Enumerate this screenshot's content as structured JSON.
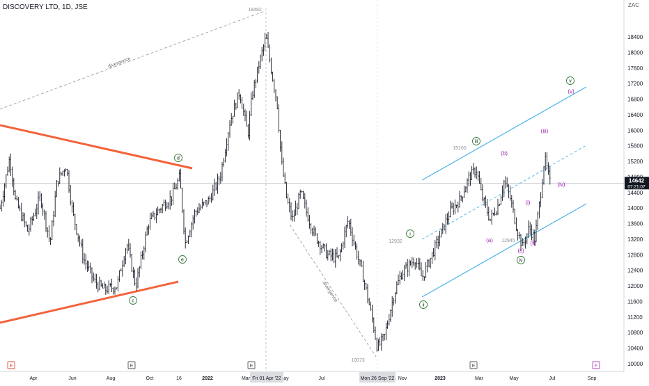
{
  "header": {
    "symbol": "DISCOVERY LTD, 1D, JSE",
    "currency": "ZAC"
  },
  "chart_data": {
    "type": "candlestick",
    "price_ticks": [
      10000,
      10400,
      10800,
      11200,
      11600,
      12000,
      12400,
      12800,
      13200,
      13600,
      14000,
      14400,
      14800,
      15200,
      15600,
      16000,
      16400,
      16800,
      17200,
      17600,
      18000,
      18400
    ],
    "time_ticks": [
      "Apr",
      "Jun",
      "Aug",
      "Oct",
      "16",
      "2022",
      "Mar",
      "May",
      "Jul",
      "S",
      "Nov",
      "2023",
      "Mar",
      "May",
      "Jul",
      "Sep"
    ],
    "last_price": "14642",
    "countdown": "07:21:07",
    "price_labels": [
      {
        "text": "18482",
        "price": 18482
      },
      {
        "text": "10073",
        "price": 10073
      },
      {
        "text": "15160",
        "price": 15160
      },
      {
        "text": "12932",
        "price": 12932
      },
      {
        "text": "12945",
        "price": 12945
      }
    ],
    "crosshair": {
      "date_label": "Fri 01 Apr '22",
      "date_label_2": "Mon 26 Sep '22"
    },
    "annotations": [
      {
        "text": "divergence"
      },
      {
        "text": "divergence"
      }
    ],
    "wave_labels": [
      {
        "text": "d",
        "style": "circle"
      },
      {
        "text": "e",
        "style": "circle"
      },
      {
        "text": "c",
        "style": "circle"
      },
      {
        "text": "iii",
        "style": "circle"
      },
      {
        "text": "i",
        "style": "circle"
      },
      {
        "text": "ii",
        "style": "circle"
      },
      {
        "text": "iv",
        "style": "circle"
      },
      {
        "text": "v",
        "style": "circle"
      },
      {
        "text": "(v)",
        "style": "purple"
      },
      {
        "text": "(iii)",
        "style": "purple"
      },
      {
        "text": "(b)",
        "style": "purple"
      },
      {
        "text": "(iv)",
        "style": "purple"
      },
      {
        "text": "(i)",
        "style": "purple"
      },
      {
        "text": "(a)",
        "style": "purple"
      },
      {
        "text": "(c)",
        "style": "purple"
      },
      {
        "text": "(ii)",
        "style": "purple"
      }
    ],
    "event_markers": [
      "E",
      "E",
      "E",
      "E",
      "F"
    ],
    "colors": {
      "candles": "#131722",
      "trendline": "#f4623a",
      "channel": "#4bb3e6",
      "wave_purple": "#9c27b0",
      "wave_green": "#2e7d32",
      "divergence": "#9aa0a6",
      "dividend": "#e04b3c",
      "earnings": "#555555",
      "future": "#ab47bc"
    }
  }
}
